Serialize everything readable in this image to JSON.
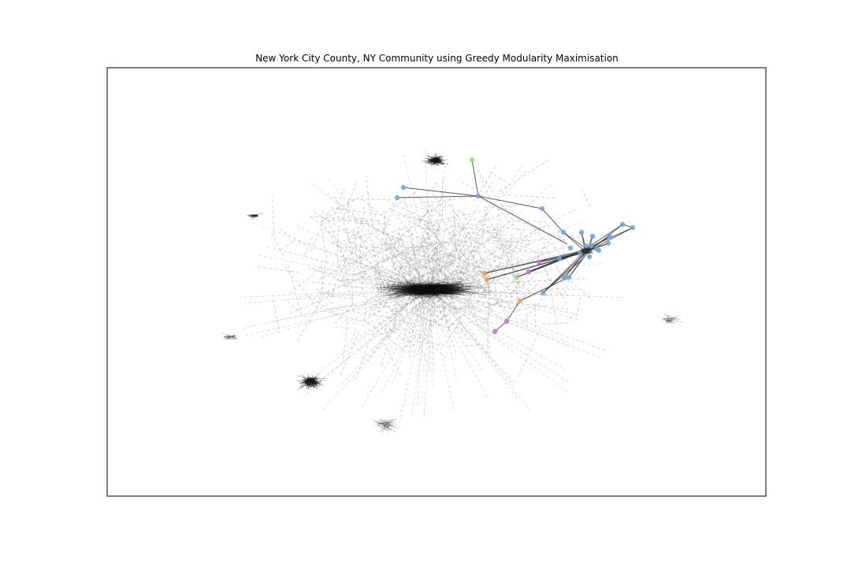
{
  "figure": {
    "title": "New York City County, NY Community using Greedy Modularity Maximisation"
  },
  "colors": {
    "background_edge": "#9a9a9a",
    "dense_cluster": "#111111",
    "highlight_edge": "#333333",
    "community_blue": "#6fa3d8",
    "community_orange": "#f0a04b",
    "community_purple": "#c66fc7",
    "community_green": "#8fdc74",
    "frame": "#000000"
  },
  "graph": {
    "background_style": "dashed light-gray edges",
    "highlighted_community_style": "solid dark edges with colored nodes",
    "communities": [
      "blue",
      "orange",
      "purple",
      "green"
    ]
  }
}
